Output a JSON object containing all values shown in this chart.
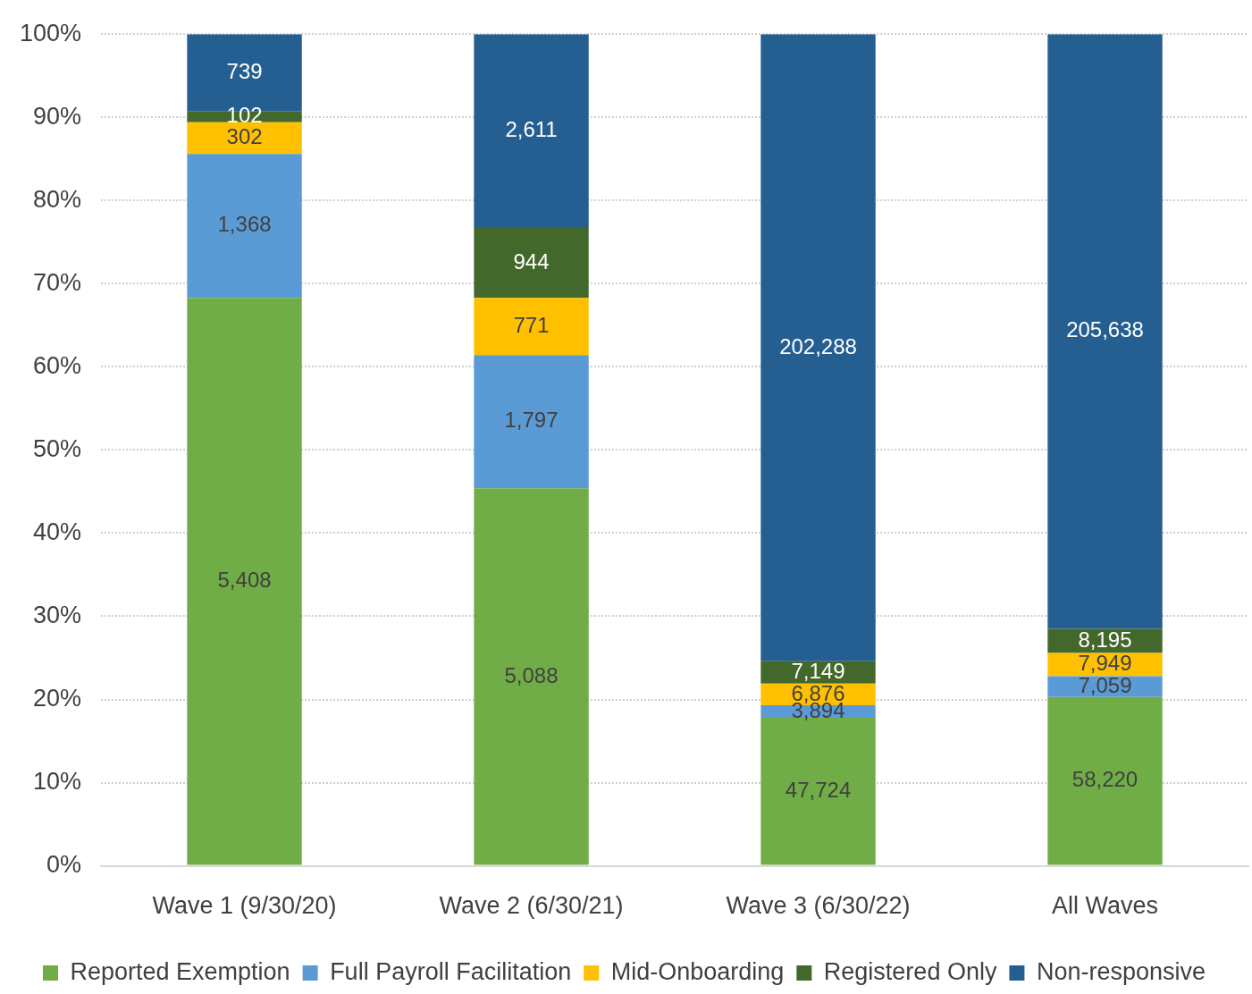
{
  "chart_data": {
    "type": "bar",
    "stacked": true,
    "categories": [
      "Wave 1 (9/30/20)",
      "Wave 2 (6/30/21)",
      "Wave 3 (6/30/22)",
      "All Waves"
    ],
    "series": [
      {
        "name": "Reported Exemption",
        "color": "#70ad47",
        "values": [
          68.3,
          45.4,
          17.8,
          20.3
        ]
      },
      {
        "name": "Full Payroll Facilitation",
        "color": "#5b9bd5",
        "values": [
          17.3,
          16.0,
          1.5,
          2.5
        ]
      },
      {
        "name": "Mid-Onboarding",
        "color": "#ffc000",
        "values": [
          3.8,
          6.9,
          2.6,
          2.8
        ]
      },
      {
        "name": "Registered Only",
        "color": "#43682b",
        "values": [
          1.3,
          8.4,
          2.7,
          2.9
        ]
      },
      {
        "name": "Non-responsive",
        "color": "#255e91",
        "values": [
          9.3,
          23.3,
          75.4,
          71.5
        ]
      }
    ],
    "annotations": [
      "5,408",
      "1,368",
      "302",
      "102",
      "739",
      "5,088",
      "1,797",
      "771",
      "944",
      "2,611",
      "47,724",
      "3,894",
      "6,876",
      "7,149",
      "202,288",
      "58,220",
      "7,059",
      "7,949",
      "8,195",
      "205,638"
    ],
    "ylim": [
      0,
      100
    ],
    "yticks": [
      {
        "value": 0,
        "label": "0%"
      },
      {
        "value": 10,
        "label": "10%"
      },
      {
        "value": 20,
        "label": "20%"
      },
      {
        "value": 30,
        "label": "30%"
      },
      {
        "value": 40,
        "label": "40%"
      },
      {
        "value": 50,
        "label": "50%"
      },
      {
        "value": 60,
        "label": "60%"
      },
      {
        "value": 70,
        "label": "70%"
      },
      {
        "value": 80,
        "label": "80%"
      },
      {
        "value": 90,
        "label": "90%"
      },
      {
        "value": 100,
        "label": "100%"
      }
    ],
    "grid": "y",
    "legend": "bottom"
  }
}
